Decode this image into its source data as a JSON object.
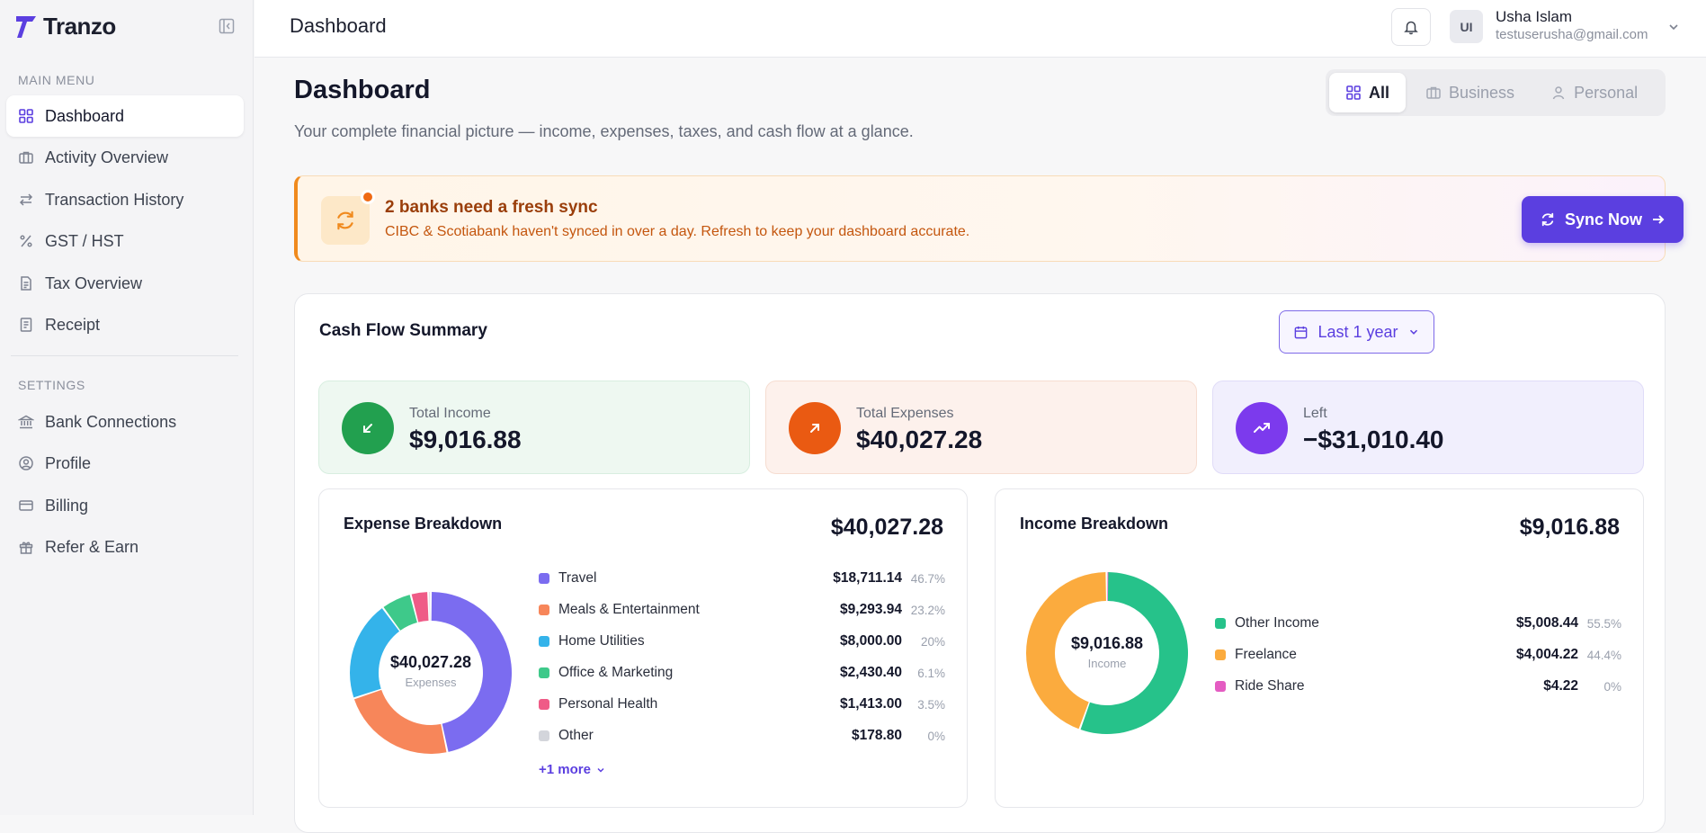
{
  "brand": {
    "name": "Tranzo"
  },
  "sidebar": {
    "main_menu_label": "MAIN MENU",
    "main_items": [
      {
        "label": "Dashboard",
        "icon": "grid-icon",
        "active": true
      },
      {
        "label": "Activity Overview",
        "icon": "briefcase-icon"
      },
      {
        "label": "Transaction History",
        "icon": "arrows-exchange-icon"
      },
      {
        "label": "GST / HST",
        "icon": "percent-icon"
      },
      {
        "label": "Tax Overview",
        "icon": "document-icon"
      },
      {
        "label": "Receipt",
        "icon": "receipt-icon"
      }
    ],
    "settings_label": "SETTINGS",
    "settings_items": [
      {
        "label": "Bank Connections",
        "icon": "bank-icon"
      },
      {
        "label": "Profile",
        "icon": "user-circle-icon"
      },
      {
        "label": "Billing",
        "icon": "credit-card-icon"
      },
      {
        "label": "Refer & Earn",
        "icon": "gift-icon"
      }
    ]
  },
  "topbar": {
    "title": "Dashboard",
    "user": {
      "initials": "UI",
      "name": "Usha Islam",
      "email": "testuserusha@gmail.com"
    }
  },
  "page": {
    "title": "Dashboard",
    "subtitle": "Your complete financial picture — income, expenses, taxes, and cash flow at a glance.",
    "filters": [
      {
        "label": "All",
        "icon": "grid-icon",
        "active": true
      },
      {
        "label": "Business",
        "icon": "briefcase-icon"
      },
      {
        "label": "Personal",
        "icon": "user-icon"
      }
    ]
  },
  "alert": {
    "title": "2 banks need a fresh sync",
    "text": "CIBC & Scotiabank haven't synced in over a day. Refresh to keep your dashboard accurate.",
    "button": "Sync Now"
  },
  "cash_flow": {
    "title": "Cash Flow Summary",
    "period": "Last 1 year",
    "stats": [
      {
        "label": "Total Income",
        "value": "$9,016.88",
        "color": "#22a04f",
        "bg": "#eef8f1"
      },
      {
        "label": "Total Expenses",
        "value": "$40,027.28",
        "color": "#ea5a12",
        "bg": "#fdf1ec"
      },
      {
        "label": "Left",
        "value": "−$31,010.40",
        "color": "#7c3aed",
        "bg": "#f1effd"
      }
    ]
  },
  "expense_breakdown": {
    "title": "Expense Breakdown",
    "total": "$40,027.28",
    "center_amount": "$40,027.28",
    "center_label": "Expenses",
    "more": "+1 more",
    "items": [
      {
        "name": "Travel",
        "amount": "$18,711.14",
        "pct": "46.7%",
        "value": 46.7,
        "color": "#7b6cf0"
      },
      {
        "name": "Meals & Entertainment",
        "amount": "$9,293.94",
        "pct": "23.2%",
        "value": 23.2,
        "color": "#f7865a"
      },
      {
        "name": "Home Utilities",
        "amount": "$8,000.00",
        "pct": "20%",
        "value": 20.0,
        "color": "#34b3ea"
      },
      {
        "name": "Office & Marketing",
        "amount": "$2,430.40",
        "pct": "6.1%",
        "value": 6.1,
        "color": "#3ec98a"
      },
      {
        "name": "Personal Health",
        "amount": "$1,413.00",
        "pct": "3.5%",
        "value": 3.5,
        "color": "#ef5b87"
      },
      {
        "name": "Other",
        "amount": "$178.80",
        "pct": "0%",
        "value": 0.5,
        "color": "#d3d5db"
      }
    ]
  },
  "income_breakdown": {
    "title": "Income Breakdown",
    "total": "$9,016.88",
    "center_amount": "$9,016.88",
    "center_label": "Income",
    "items": [
      {
        "name": "Other Income",
        "amount": "$5,008.44",
        "pct": "55.5%",
        "value": 55.5,
        "color": "#26c28a"
      },
      {
        "name": "Freelance",
        "amount": "$4,004.22",
        "pct": "44.4%",
        "value": 44.4,
        "color": "#fbab3e"
      },
      {
        "name": "Ride Share",
        "amount": "$4.22",
        "pct": "0%",
        "value": 0.1,
        "color": "#e45cc2"
      }
    ]
  }
}
